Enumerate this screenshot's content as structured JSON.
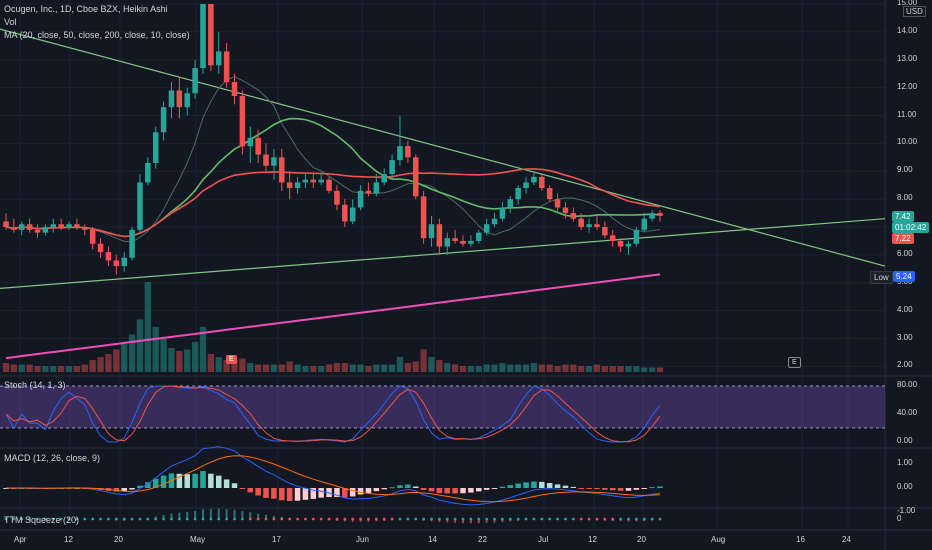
{
  "header": {
    "title": "Ocugen, Inc., 1D, Cboe BZX, Heikin Ashi",
    "vol_label": "Vol",
    "ma_label": "MA (20, close, 50, close, 200, close, 10, close)"
  },
  "currency": "USD",
  "price_axis": {
    "ticks": [
      "15.00",
      "14.00",
      "13.00",
      "12.00",
      "11.00",
      "10.00",
      "9.00",
      "8.00",
      "7.00",
      "6.00",
      "5.00",
      "4.00",
      "3.00",
      "2.00"
    ]
  },
  "tags": {
    "last_price": "7.42",
    "countdown": "01:02:42",
    "prev_price": "7.22",
    "low_label": "Low",
    "low_value": "5.24"
  },
  "markers": {
    "earnings": "E",
    "e_flag": "E"
  },
  "stoch": {
    "label": "Stoch (14, 1, 3)",
    "ticks": [
      "80.00",
      "40.00",
      "0.00"
    ]
  },
  "macd": {
    "label": "MACD (12, 26, close, 9)",
    "ticks": [
      "1.00",
      "0.00",
      "-1.00"
    ]
  },
  "ttm": {
    "label": "TTM Squeeze (20)",
    "tick": "0"
  },
  "time_axis": {
    "labels": [
      "Apr",
      "12",
      "20",
      "May",
      "17",
      "Jun",
      "14",
      "22",
      "Jul",
      "12",
      "20",
      "Aug",
      "16",
      "24"
    ]
  },
  "colors": {
    "up": "#26a69a",
    "down": "#ef5350",
    "ma20": "#66bb6a",
    "ma50": "#ef5350",
    "ma200": "#ec4fb7",
    "trend": "#81c784",
    "stoch_k": "#2962ff",
    "stoch_d": "#ef5350",
    "stoch_band": "#7e57c2"
  },
  "chart_data": {
    "type": "candlestick",
    "candles": [
      {
        "o": 7.2,
        "h": 7.5,
        "l": 6.9,
        "c": 7.0
      },
      {
        "o": 7.0,
        "h": 7.3,
        "l": 6.8,
        "c": 6.9
      },
      {
        "o": 6.9,
        "h": 7.2,
        "l": 6.7,
        "c": 7.1
      },
      {
        "o": 7.1,
        "h": 7.3,
        "l": 6.8,
        "c": 6.9
      },
      {
        "o": 6.9,
        "h": 7.1,
        "l": 6.6,
        "c": 6.8
      },
      {
        "o": 6.8,
        "h": 7.1,
        "l": 6.7,
        "c": 7.0
      },
      {
        "o": 7.0,
        "h": 7.3,
        "l": 6.8,
        "c": 7.1
      },
      {
        "o": 7.1,
        "h": 7.3,
        "l": 6.9,
        "c": 7.0
      },
      {
        "o": 7.0,
        "h": 7.2,
        "l": 6.9,
        "c": 7.1
      },
      {
        "o": 7.1,
        "h": 7.3,
        "l": 6.9,
        "c": 7.0
      },
      {
        "o": 7.0,
        "h": 7.1,
        "l": 6.7,
        "c": 6.9
      },
      {
        "o": 6.9,
        "h": 7.0,
        "l": 6.2,
        "c": 6.4
      },
      {
        "o": 6.4,
        "h": 6.6,
        "l": 5.9,
        "c": 6.1
      },
      {
        "o": 6.1,
        "h": 6.3,
        "l": 5.6,
        "c": 5.8
      },
      {
        "o": 5.8,
        "h": 6.0,
        "l": 5.3,
        "c": 5.6
      },
      {
        "o": 5.6,
        "h": 6.1,
        "l": 5.4,
        "c": 5.9
      },
      {
        "o": 5.9,
        "h": 7.0,
        "l": 5.8,
        "c": 6.9
      },
      {
        "o": 6.9,
        "h": 8.9,
        "l": 6.8,
        "c": 8.6
      },
      {
        "o": 8.6,
        "h": 9.5,
        "l": 8.5,
        "c": 9.3
      },
      {
        "o": 9.3,
        "h": 10.6,
        "l": 9.1,
        "c": 10.4
      },
      {
        "o": 10.4,
        "h": 11.5,
        "l": 10.1,
        "c": 11.3
      },
      {
        "o": 11.3,
        "h": 12.2,
        "l": 10.9,
        "c": 11.9
      },
      {
        "o": 11.9,
        "h": 12.4,
        "l": 10.9,
        "c": 11.3
      },
      {
        "o": 11.3,
        "h": 12.0,
        "l": 11.0,
        "c": 11.8
      },
      {
        "o": 11.8,
        "h": 13.0,
        "l": 11.6,
        "c": 12.7
      },
      {
        "o": 12.7,
        "h": 15.0,
        "l": 12.5,
        "c": 15.0
      },
      {
        "o": 15.0,
        "h": 15.0,
        "l": 12.6,
        "c": 12.8
      },
      {
        "o": 12.8,
        "h": 14.0,
        "l": 12.5,
        "c": 13.3
      },
      {
        "o": 13.3,
        "h": 13.6,
        "l": 12.0,
        "c": 12.2
      },
      {
        "o": 12.2,
        "h": 12.5,
        "l": 11.4,
        "c": 11.7
      },
      {
        "o": 11.7,
        "h": 11.9,
        "l": 9.6,
        "c": 9.9
      },
      {
        "o": 9.9,
        "h": 10.6,
        "l": 9.3,
        "c": 10.2
      },
      {
        "o": 10.2,
        "h": 10.5,
        "l": 9.3,
        "c": 9.6
      },
      {
        "o": 9.6,
        "h": 10.0,
        "l": 9.0,
        "c": 9.2
      },
      {
        "o": 9.2,
        "h": 9.8,
        "l": 8.7,
        "c": 9.5
      },
      {
        "o": 9.5,
        "h": 9.8,
        "l": 8.3,
        "c": 8.6
      },
      {
        "o": 8.6,
        "h": 9.0,
        "l": 8.0,
        "c": 8.4
      },
      {
        "o": 8.4,
        "h": 8.8,
        "l": 8.2,
        "c": 8.6
      },
      {
        "o": 8.6,
        "h": 8.9,
        "l": 8.4,
        "c": 8.7
      },
      {
        "o": 8.7,
        "h": 8.9,
        "l": 8.4,
        "c": 8.6
      },
      {
        "o": 8.6,
        "h": 8.9,
        "l": 8.5,
        "c": 8.7
      },
      {
        "o": 8.7,
        "h": 8.8,
        "l": 8.2,
        "c": 8.3
      },
      {
        "o": 8.3,
        "h": 8.5,
        "l": 7.6,
        "c": 7.8
      },
      {
        "o": 7.8,
        "h": 8.0,
        "l": 7.0,
        "c": 7.2
      },
      {
        "o": 7.2,
        "h": 8.0,
        "l": 7.1,
        "c": 7.7
      },
      {
        "o": 7.7,
        "h": 8.5,
        "l": 7.6,
        "c": 8.3
      },
      {
        "o": 8.3,
        "h": 8.6,
        "l": 8.1,
        "c": 8.2
      },
      {
        "o": 8.2,
        "h": 8.9,
        "l": 8.1,
        "c": 8.6
      },
      {
        "o": 8.6,
        "h": 9.1,
        "l": 8.5,
        "c": 8.9
      },
      {
        "o": 8.9,
        "h": 9.6,
        "l": 8.7,
        "c": 9.4
      },
      {
        "o": 9.4,
        "h": 11.0,
        "l": 9.2,
        "c": 9.9
      },
      {
        "o": 9.9,
        "h": 10.1,
        "l": 9.3,
        "c": 9.5
      },
      {
        "o": 9.5,
        "h": 9.6,
        "l": 8.0,
        "c": 8.1
      },
      {
        "o": 8.1,
        "h": 8.3,
        "l": 6.4,
        "c": 6.6
      },
      {
        "o": 6.6,
        "h": 7.4,
        "l": 6.3,
        "c": 7.1
      },
      {
        "o": 7.1,
        "h": 7.3,
        "l": 6.0,
        "c": 6.3
      },
      {
        "o": 6.3,
        "h": 6.8,
        "l": 6.0,
        "c": 6.6
      },
      {
        "o": 6.6,
        "h": 6.9,
        "l": 6.4,
        "c": 6.5
      },
      {
        "o": 6.5,
        "h": 6.7,
        "l": 6.3,
        "c": 6.4
      },
      {
        "o": 6.4,
        "h": 6.7,
        "l": 6.3,
        "c": 6.5
      },
      {
        "o": 6.5,
        "h": 6.9,
        "l": 6.4,
        "c": 6.8
      },
      {
        "o": 6.8,
        "h": 7.3,
        "l": 6.7,
        "c": 7.1
      },
      {
        "o": 7.1,
        "h": 7.5,
        "l": 7.0,
        "c": 7.3
      },
      {
        "o": 7.3,
        "h": 7.9,
        "l": 7.2,
        "c": 7.7
      },
      {
        "o": 7.7,
        "h": 8.1,
        "l": 7.5,
        "c": 8.0
      },
      {
        "o": 8.0,
        "h": 8.5,
        "l": 7.8,
        "c": 8.4
      },
      {
        "o": 8.4,
        "h": 8.8,
        "l": 8.2,
        "c": 8.6
      },
      {
        "o": 8.6,
        "h": 9.0,
        "l": 8.5,
        "c": 8.8
      },
      {
        "o": 8.8,
        "h": 8.9,
        "l": 8.3,
        "c": 8.4
      },
      {
        "o": 8.4,
        "h": 8.5,
        "l": 7.9,
        "c": 8.0
      },
      {
        "o": 8.0,
        "h": 8.2,
        "l": 7.5,
        "c": 7.7
      },
      {
        "o": 7.7,
        "h": 7.9,
        "l": 7.3,
        "c": 7.5
      },
      {
        "o": 7.5,
        "h": 7.7,
        "l": 7.2,
        "c": 7.3
      },
      {
        "o": 7.3,
        "h": 7.5,
        "l": 6.9,
        "c": 7.0
      },
      {
        "o": 7.0,
        "h": 7.3,
        "l": 6.8,
        "c": 7.1
      },
      {
        "o": 7.1,
        "h": 7.4,
        "l": 6.9,
        "c": 7.0
      },
      {
        "o": 7.0,
        "h": 7.2,
        "l": 6.6,
        "c": 6.7
      },
      {
        "o": 6.7,
        "h": 6.9,
        "l": 6.3,
        "c": 6.5
      },
      {
        "o": 6.5,
        "h": 6.6,
        "l": 6.1,
        "c": 6.3
      },
      {
        "o": 6.3,
        "h": 6.5,
        "l": 6.0,
        "c": 6.4
      },
      {
        "o": 6.4,
        "h": 7.0,
        "l": 6.3,
        "c": 6.9
      },
      {
        "o": 6.9,
        "h": 7.5,
        "l": 6.8,
        "c": 7.3
      },
      {
        "o": 7.3,
        "h": 7.6,
        "l": 7.2,
        "c": 7.5
      },
      {
        "o": 7.5,
        "h": 7.6,
        "l": 7.2,
        "c": 7.4
      }
    ],
    "volume": [
      0.6,
      0.5,
      0.5,
      0.5,
      0.4,
      0.4,
      0.4,
      0.4,
      0.4,
      0.4,
      0.5,
      0.8,
      1.0,
      1.2,
      1.5,
      2.0,
      2.5,
      3.5,
      6.0,
      3.0,
      2.2,
      1.6,
      1.4,
      1.5,
      2.0,
      3.0,
      1.2,
      1.0,
      0.8,
      0.8,
      0.9,
      0.6,
      0.5,
      0.5,
      0.5,
      0.5,
      0.7,
      0.5,
      0.4,
      0.4,
      0.4,
      0.5,
      0.6,
      0.6,
      0.5,
      0.5,
      0.4,
      0.5,
      0.5,
      0.5,
      1.0,
      0.6,
      0.7,
      1.5,
      1.0,
      0.8,
      0.6,
      0.5,
      0.4,
      0.4,
      0.4,
      0.5,
      0.5,
      0.6,
      0.5,
      0.5,
      0.5,
      0.6,
      0.5,
      0.5,
      0.4,
      0.5,
      0.5,
      0.4,
      0.4,
      0.5,
      0.4,
      0.4,
      0.4,
      0.4,
      0.4,
      0.3,
      0.3,
      0.3
    ],
    "ylim": [
      1.8,
      15.0
    ]
  }
}
